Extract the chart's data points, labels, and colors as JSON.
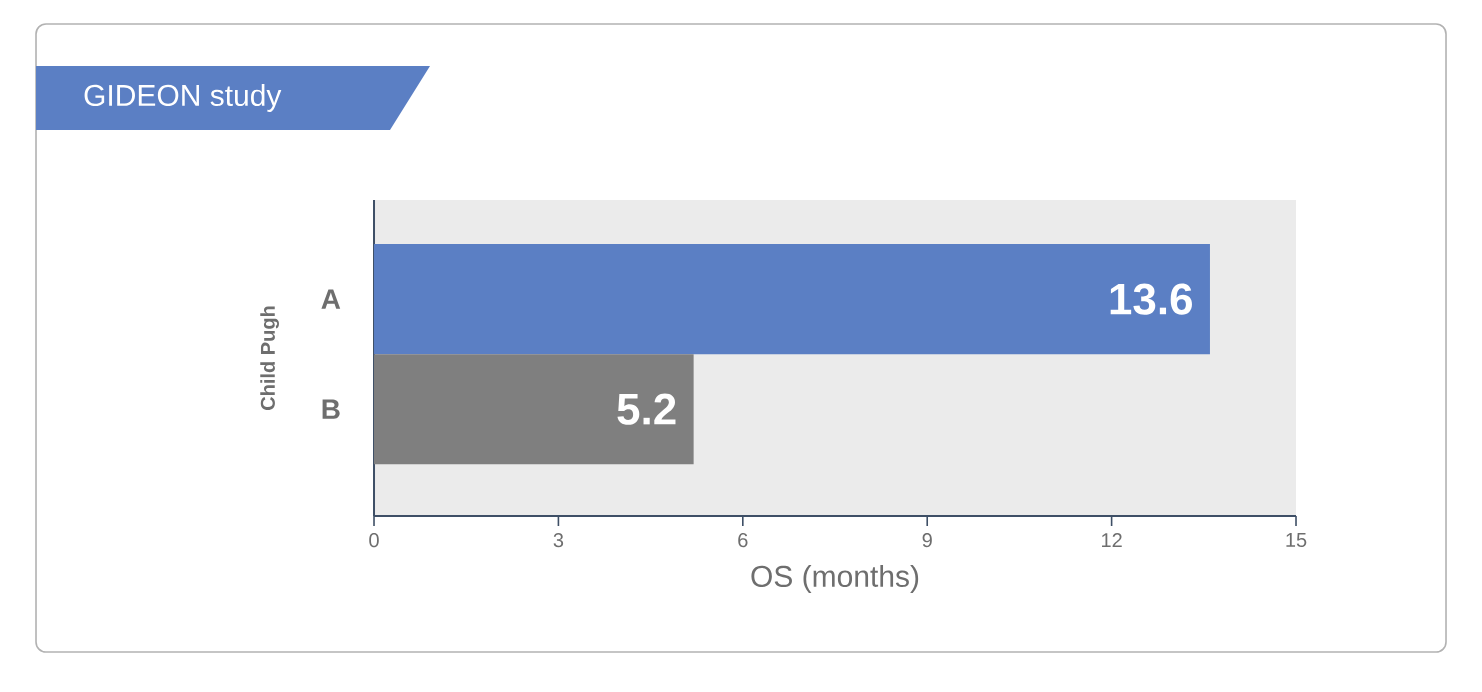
{
  "chart_data": {
    "type": "bar",
    "orientation": "horizontal",
    "title": "GIDEON study",
    "xlabel": "OS (months)",
    "ylabel": "Child Pugh",
    "categories": [
      "A",
      "B"
    ],
    "values": [
      13.6,
      5.2
    ],
    "colors": [
      "#5b7fc4",
      "#7f7f7f"
    ],
    "xlim": [
      0,
      15
    ],
    "xticks": [
      0,
      3,
      6,
      9,
      12,
      15
    ],
    "data_labels": true
  }
}
